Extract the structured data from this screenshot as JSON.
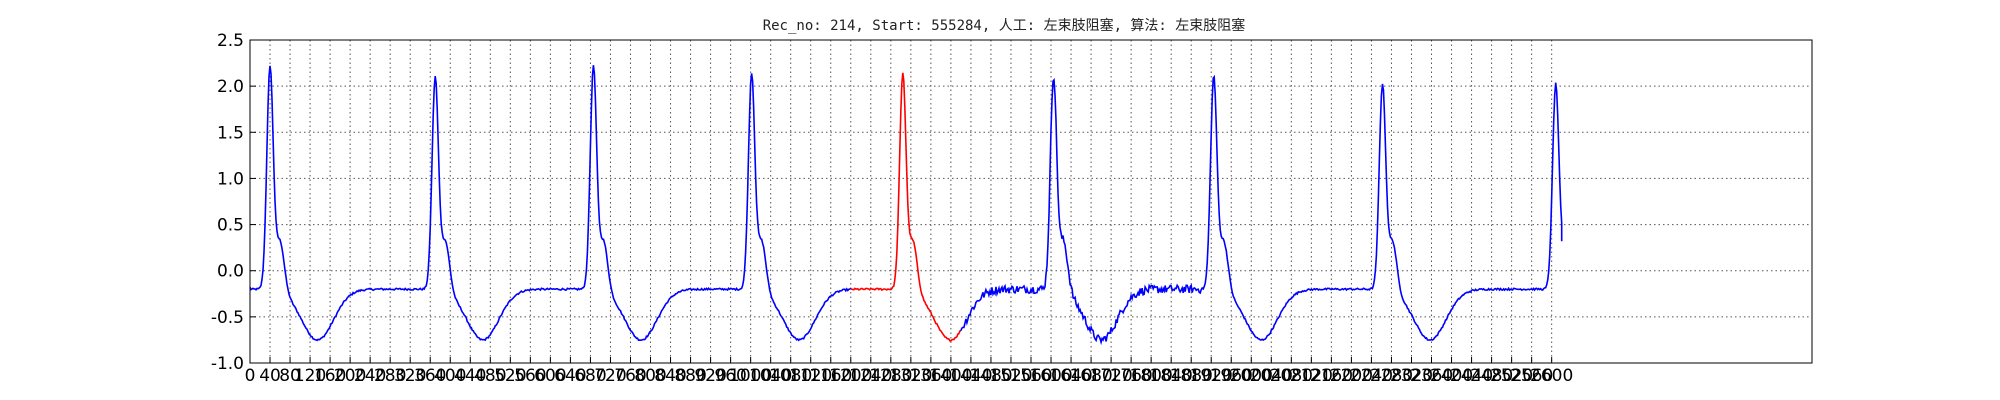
{
  "chart_data": {
    "type": "line",
    "title": "Rec_no: 214, Start: 555284, 人工: 左束肢阻塞, 算法: 左束肢阻塞",
    "xlabel": "",
    "ylabel": "",
    "xlim": [
      0,
      3120
    ],
    "ylim": [
      -1.0,
      2.5
    ],
    "grid": true,
    "grid_style": "dotted",
    "y_ticks": [
      "-1.0",
      "-0.5",
      "0.0",
      "0.5",
      "1.0",
      "1.5",
      "2.0",
      "2.5"
    ],
    "x_ticks": [
      "0",
      "40",
      "80",
      "120",
      "160",
      "200",
      "240",
      "280",
      "320",
      "360",
      "400",
      "440",
      "480",
      "520",
      "560",
      "600",
      "640",
      "680",
      "720",
      "760",
      "800",
      "840",
      "880",
      "920",
      "960",
      "1000",
      "1040",
      "1080",
      "1120",
      "1160",
      "1200",
      "1240",
      "1280",
      "1320",
      "1360",
      "1400",
      "1440",
      "1480",
      "1520",
      "1560",
      "1600",
      "1640",
      "1680",
      "1720",
      "1760",
      "1800",
      "1840",
      "1880",
      "1920",
      "1960",
      "2000",
      "2040",
      "2080",
      "2120",
      "2160",
      "2200",
      "2240",
      "2280",
      "2320",
      "2360",
      "2400",
      "2440",
      "2480",
      "2520",
      "2560",
      "2600"
    ],
    "beats": [
      {
        "peak_x": 40,
        "peak_y": 2.2
      },
      {
        "peak_x": 370,
        "peak_y": 2.08
      },
      {
        "peak_x": 686,
        "peak_y": 2.2
      },
      {
        "peak_x": 1002,
        "peak_y": 2.12
      },
      {
        "peak_x": 1304,
        "peak_y": 2.12
      },
      {
        "peak_x": 1605,
        "peak_y": 2.1
      },
      {
        "peak_x": 1925,
        "peak_y": 2.09
      },
      {
        "peak_x": 2262,
        "peak_y": 2.0
      },
      {
        "peak_x": 2608,
        "peak_y": 2.0
      }
    ],
    "highlight": {
      "x_start": 1200,
      "x_end": 1420,
      "color": "#ff0000"
    },
    "series": [
      {
        "line_color": "#0000ff",
        "x_end": 2620,
        "end_y": 0.32
      }
    ]
  }
}
